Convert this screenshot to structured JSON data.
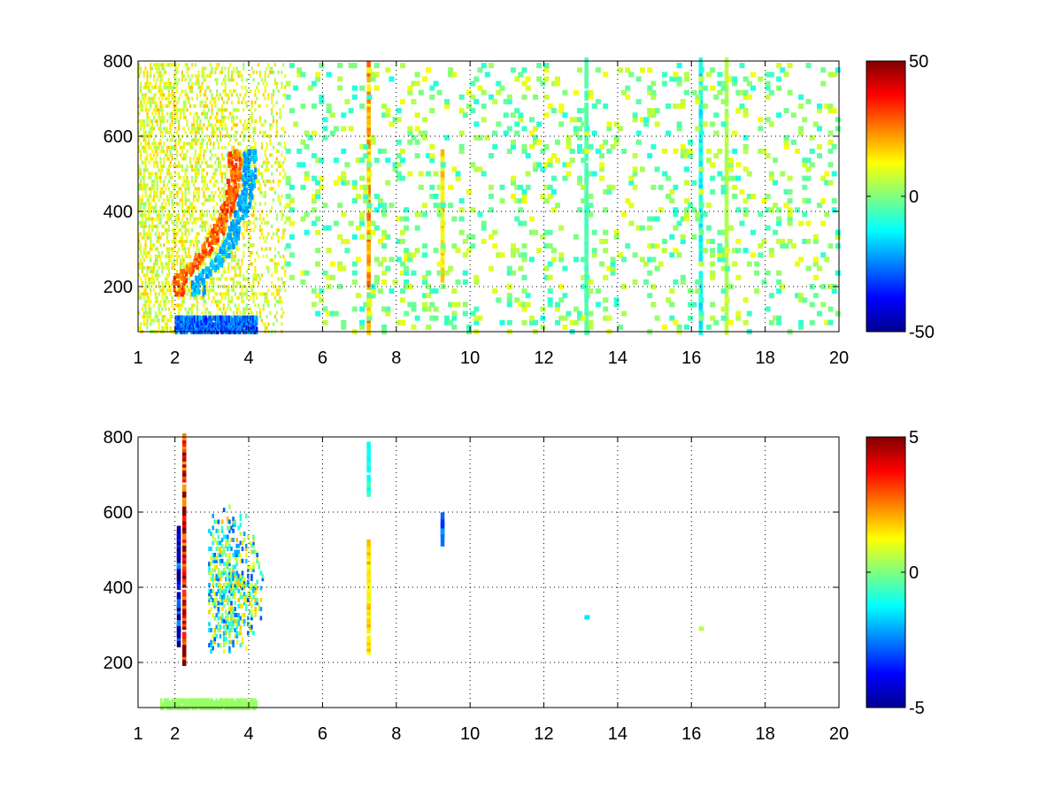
{
  "chart_data": [
    {
      "type": "heatmap",
      "title": "",
      "xlabel": "",
      "ylabel": "",
      "xlim": [
        1,
        20
      ],
      "ylim": [
        80,
        800
      ],
      "x_ticks": [
        "1",
        "2",
        "4",
        "6",
        "8",
        "10",
        "12",
        "14",
        "16",
        "18",
        "20"
      ],
      "y_ticks": [
        "200",
        "400",
        "600",
        "800"
      ],
      "grid": true,
      "colormap": "jet",
      "clim": [
        -50,
        50
      ],
      "colorbar_ticks": [
        "50",
        "0",
        "-50"
      ],
      "features": [
        {
          "kind": "dense-region",
          "x": [
            1.0,
            5.0
          ],
          "y": [
            80,
            800
          ],
          "value": 8,
          "density": 0.55
        },
        {
          "kind": "curved-band",
          "x_at_y": [
            [
              2.1,
              220
            ],
            [
              2.6,
              270
            ],
            [
              3.0,
              320
            ],
            [
              3.3,
              380
            ],
            [
              3.5,
              440
            ],
            [
              3.6,
              500
            ]
          ],
          "value": 35
        },
        {
          "kind": "curved-band",
          "x_at_y": [
            [
              2.6,
              220
            ],
            [
              3.2,
              270
            ],
            [
              3.5,
              320
            ],
            [
              3.7,
              380
            ],
            [
              3.9,
              440
            ],
            [
              4.0,
              500
            ]
          ],
          "value": -25
        },
        {
          "kind": "horizontal-band",
          "x": [
            2.0,
            4.2
          ],
          "y": [
            80,
            120
          ],
          "value": -35
        },
        {
          "kind": "vertical-line",
          "x": 7.2,
          "y": [
            80,
            800
          ],
          "value": 20
        },
        {
          "kind": "vertical-line",
          "x": 9.2,
          "y": [
            220,
            560
          ],
          "value": 15
        },
        {
          "kind": "vertical-line",
          "x": 13.1,
          "y": [
            80,
            800
          ],
          "value": -5
        },
        {
          "kind": "vertical-line",
          "x": 16.2,
          "y": [
            80,
            800
          ],
          "value": -12
        },
        {
          "kind": "vertical-line",
          "x": 16.9,
          "y": [
            80,
            800
          ],
          "value": 5
        },
        {
          "kind": "sparse-scatter",
          "x": [
            5.0,
            20.0
          ],
          "y": [
            80,
            800
          ],
          "value_range": [
            -10,
            12
          ],
          "density": 0.13
        }
      ]
    },
    {
      "type": "heatmap",
      "title": "",
      "xlabel": "",
      "ylabel": "",
      "xlim": [
        1,
        20
      ],
      "ylim": [
        80,
        800
      ],
      "x_ticks": [
        "1",
        "2",
        "4",
        "6",
        "8",
        "10",
        "12",
        "14",
        "16",
        "18",
        "20"
      ],
      "y_ticks": [
        "200",
        "400",
        "600",
        "800"
      ],
      "grid": true,
      "colormap": "jet",
      "clim": [
        -5,
        5
      ],
      "colorbar_ticks": [
        "5",
        "0",
        "-5"
      ],
      "features": [
        {
          "kind": "cluster",
          "x": [
            2.9,
            4.6
          ],
          "y": [
            230,
            640
          ],
          "value_range": [
            -3,
            2
          ],
          "density": 0.5
        },
        {
          "kind": "vertical-line",
          "x": 2.2,
          "y": [
            200,
            800
          ],
          "value": 4
        },
        {
          "kind": "vertical-line",
          "x": 2.05,
          "y": [
            250,
            560
          ],
          "value": -4
        },
        {
          "kind": "horizontal-band",
          "x": [
            1.6,
            4.2
          ],
          "y": [
            80,
            100
          ],
          "value": 0.3
        },
        {
          "kind": "vertical-line",
          "x": 7.2,
          "y": [
            230,
            520
          ],
          "value": 1.5
        },
        {
          "kind": "vertical-line",
          "x": 7.2,
          "y": [
            650,
            780
          ],
          "value": -1
        },
        {
          "kind": "vertical-line",
          "x": 9.2,
          "y": [
            510,
            590
          ],
          "value": -2.5
        },
        {
          "kind": "blob",
          "x": 13.1,
          "y": 320,
          "value": -1.5
        },
        {
          "kind": "blob",
          "x": 16.2,
          "y": 290,
          "value": 0.5
        }
      ]
    }
  ]
}
